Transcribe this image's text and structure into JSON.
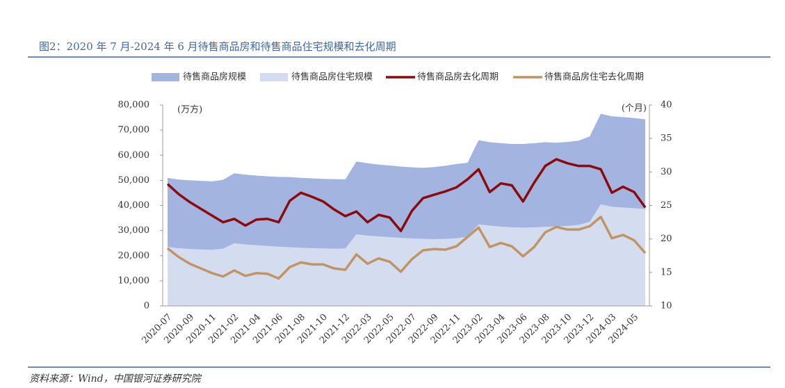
{
  "title": "图2：2020 年 7 月-2024 年 6 月待售商品房和待售商品住宅规模和去化周期",
  "source": "资料来源：Wind，中国银河证券研究院",
  "chart_data": {
    "type": "combo",
    "y_label": "(万方)",
    "y2_label": "(个月)",
    "categories": [
      "2020-07",
      null,
      "2020-09",
      null,
      "2020-11",
      null,
      "2021-02",
      null,
      "2021-04",
      null,
      "2021-06",
      null,
      "2021-08",
      null,
      "2021-10",
      null,
      "2021-12",
      null,
      "2022-03",
      null,
      "2022-05",
      null,
      "2022-07",
      null,
      "2022-09",
      null,
      "2022-11",
      null,
      "2023-02",
      null,
      "2023-04",
      null,
      "2023-06",
      null,
      "2023-08",
      null,
      "2023-10",
      null,
      "2023-12",
      null,
      "2024-03",
      null,
      "2024-05",
      null
    ],
    "series": [
      {
        "name": "待售商品房规模",
        "type": "area",
        "color": "#a3b4e0",
        "values": [
          51000,
          50300,
          50000,
          49800,
          49600,
          50200,
          52800,
          52300,
          51900,
          51600,
          51400,
          51300,
          51000,
          50800,
          50600,
          50500,
          50400,
          57500,
          56800,
          56300,
          55900,
          55500,
          55200,
          55000,
          55300,
          55800,
          56500,
          57000,
          66000,
          65200,
          64800,
          64500,
          64500,
          64800,
          65200,
          65000,
          65300,
          65800,
          67500,
          76500,
          75500,
          75200,
          74800,
          74300
        ]
      },
      {
        "name": "待售商品房住宅规模",
        "type": "area",
        "color": "#d4ddf0",
        "values": [
          23500,
          23000,
          22700,
          22500,
          22400,
          22800,
          25000,
          24500,
          24200,
          23900,
          23600,
          23400,
          23200,
          23000,
          22900,
          22800,
          22900,
          28500,
          28000,
          27700,
          27400,
          27100,
          26900,
          26700,
          26600,
          26700,
          27000,
          27500,
          32500,
          32000,
          31600,
          31300,
          31200,
          31300,
          31500,
          31700,
          31900,
          32300,
          33500,
          40500,
          39500,
          39200,
          38900,
          38600
        ]
      },
      {
        "name": "待售商品房去化周期",
        "type": "line",
        "axis": "y2",
        "color": "#8b0a0a",
        "values": [
          28.2,
          26.7,
          25.5,
          24.5,
          23.5,
          22.5,
          23.0,
          22.0,
          22.9,
          23.0,
          22.5,
          25.7,
          26.9,
          26.3,
          25.6,
          24.4,
          23.4,
          24.1,
          22.5,
          23.6,
          23.2,
          21.2,
          24.2,
          26.1,
          26.6,
          27.1,
          27.7,
          28.9,
          30.4,
          27.0,
          28.3,
          28.0,
          25.6,
          28.4,
          30.9,
          31.9,
          31.3,
          30.9,
          30.9,
          30.4,
          26.9,
          27.8,
          27.0,
          24.7
        ]
      },
      {
        "name": "待售商品房住宅去化周期",
        "type": "line",
        "axis": "y2",
        "color": "#c09464",
        "values": [
          18.6,
          17.3,
          16.3,
          15.6,
          14.9,
          14.4,
          15.3,
          14.5,
          14.9,
          14.8,
          14.1,
          15.8,
          16.5,
          16.2,
          16.2,
          15.6,
          15.4,
          17.7,
          16.3,
          17.1,
          16.6,
          15.1,
          17.0,
          18.3,
          18.5,
          18.4,
          18.9,
          20.3,
          21.7,
          18.8,
          19.4,
          18.9,
          17.4,
          18.8,
          21.0,
          21.8,
          21.4,
          21.4,
          21.9,
          23.3,
          20.1,
          20.6,
          19.8,
          17.9
        ]
      }
    ],
    "ylim": [
      0,
      80000
    ],
    "yticks": [
      0,
      {
        "value": 10000,
        "label": "10,000"
      },
      {
        "value": 20000,
        "label": "20,000"
      },
      {
        "value": 30000,
        "label": "30,000"
      },
      {
        "value": 40000,
        "label": "40,000"
      },
      {
        "value": 50000,
        "label": "50,000"
      },
      {
        "value": 60000,
        "label": "60,000"
      },
      {
        "value": 70000,
        "label": "70,000"
      },
      {
        "value": 80000,
        "label": "80,000"
      }
    ],
    "y2lim": [
      10,
      40
    ],
    "y2ticks": [
      10,
      15,
      20,
      25,
      30,
      35,
      40
    ],
    "legend": "top"
  }
}
